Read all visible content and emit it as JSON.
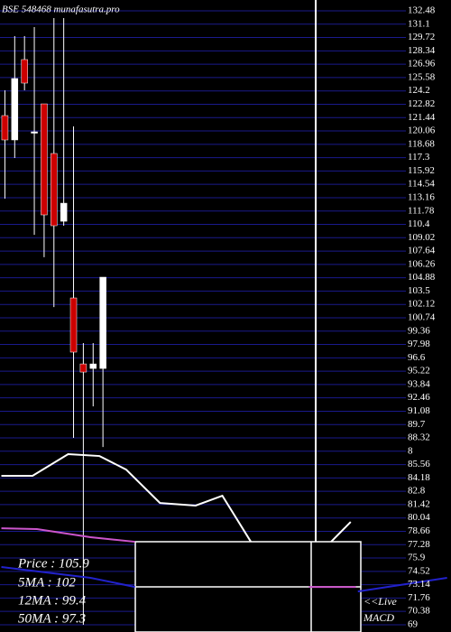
{
  "chart_data": {
    "type": "candlestick",
    "title": "BSE 548468 munafasutra.pro",
    "xlim": [
      -0.5,
      45.5
    ],
    "ylim": [
      68.25,
      133.6
    ],
    "yticks": [
      132.48,
      131.1,
      129.72,
      128.34,
      126.96,
      125.58,
      124.2,
      122.82,
      121.44,
      120.06,
      118.68,
      117.3,
      115.92,
      114.54,
      113.16,
      111.78,
      110.4,
      109.02,
      107.64,
      106.26,
      104.88,
      103.5,
      102.12,
      100.74,
      99.36,
      97.98,
      96.6,
      95.22,
      93.84,
      92.46,
      91.08,
      89.7,
      88.32,
      {
        "value": 86.94,
        "label": "8"
      },
      85.56,
      84.18,
      82.8,
      81.42,
      80.04,
      78.66,
      77.28,
      75.9,
      74.52,
      73.14,
      71.76,
      70.38,
      69
    ],
    "grid": true,
    "up_color": "#ffffff",
    "down_color": "#cc0000",
    "grid_color": "#1a1a8c",
    "candles": {
      "x": [
        0,
        1,
        2,
        3,
        4,
        5,
        6,
        7,
        8,
        9,
        10
      ],
      "open": [
        121.65,
        119.13,
        127.44,
        119.97,
        122.86,
        117.73,
        110.72,
        102.79,
        95.97,
        95.5,
        95.5
      ],
      "high": [
        124.26,
        129.87,
        129.87,
        130.8,
        122.86,
        131.73,
        131.73,
        120.53,
        98.12,
        98.12,
        104.94
      ],
      "low": [
        113.06,
        117.26,
        124.26,
        109.32,
        107.0,
        101.85,
        110.26,
        88.32,
        69,
        91.58,
        87.38
      ],
      "close": [
        119.13,
        125.48,
        125.01,
        119.97,
        111.38,
        110.26,
        112.59,
        97.19,
        95.13,
        95.97,
        104.94
      ]
    },
    "lines": [
      {
        "color": "#ffffff",
        "x": [
          -0.36,
          2.82,
          6.45,
          9.64,
          12.36,
          15.82,
          19.45,
          22.18,
          25.09,
          null,
          33.27,
          35.27
        ],
        "values": [
          84.4,
          84.4,
          86.64,
          86.45,
          85.05,
          81.59,
          81.32,
          82.34,
          77.58,
          null,
          77.58,
          79.63
        ]
      },
      {
        "color": "#cc55cc",
        "x": [
          -0.36,
          3.27,
          8.73,
          13.27,
          null,
          31.0,
          35.8
        ],
        "values": [
          78.98,
          78.89,
          78.05,
          77.58,
          null,
          72.91,
          72.91
        ]
      },
      {
        "color": "#2222cc",
        "x": [
          -0.36,
          8.73,
          13.27,
          null,
          36.0,
          45.1
        ],
        "values": [
          74.97,
          73.85,
          72.91,
          null,
          72.44,
          73.85
        ]
      }
    ],
    "info": [
      "Price   : 105.9",
      "5MA : 102",
      "12MA : 99.4",
      "50MA : 97.3"
    ],
    "live": "<<Live",
    "macd": "MACD"
  }
}
